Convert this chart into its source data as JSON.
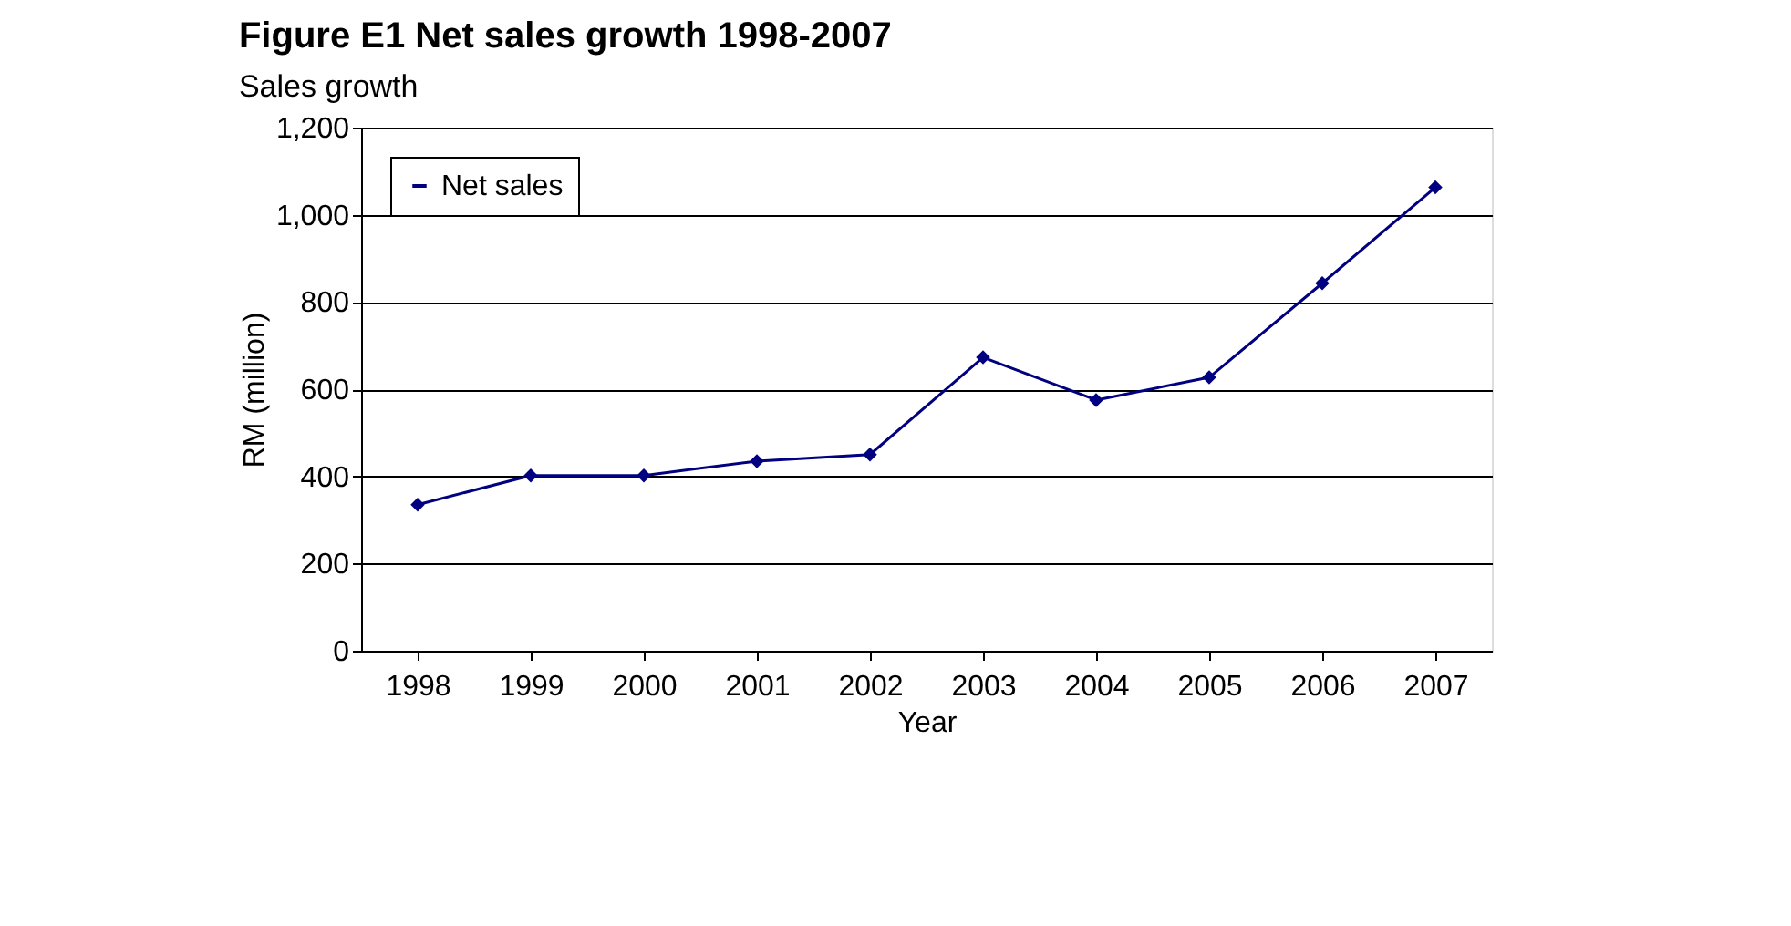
{
  "chart_data": {
    "type": "line",
    "title": "Figure E1 Net sales growth 1998-2007",
    "subtitle": "Sales growth",
    "xlabel": "Year",
    "ylabel": "RM (million)",
    "categories": [
      "1998",
      "1999",
      "2000",
      "2001",
      "2002",
      "2003",
      "2004",
      "2005",
      "2006",
      "2007"
    ],
    "series": [
      {
        "name": "Net sales",
        "color": "#000080",
        "values": [
          335,
          402,
          402,
          435,
          450,
          673,
          575,
          627,
          843,
          1063
        ]
      }
    ],
    "ylim": [
      0,
      1200
    ],
    "yticks": [
      0,
      200,
      400,
      600,
      800,
      {
        "value": 1000,
        "label": "1,000"
      },
      {
        "value": 1200,
        "label": "1,200"
      }
    ],
    "grid": "y",
    "legend": "top left",
    "marker": "diamond",
    "line_style": "solid"
  }
}
